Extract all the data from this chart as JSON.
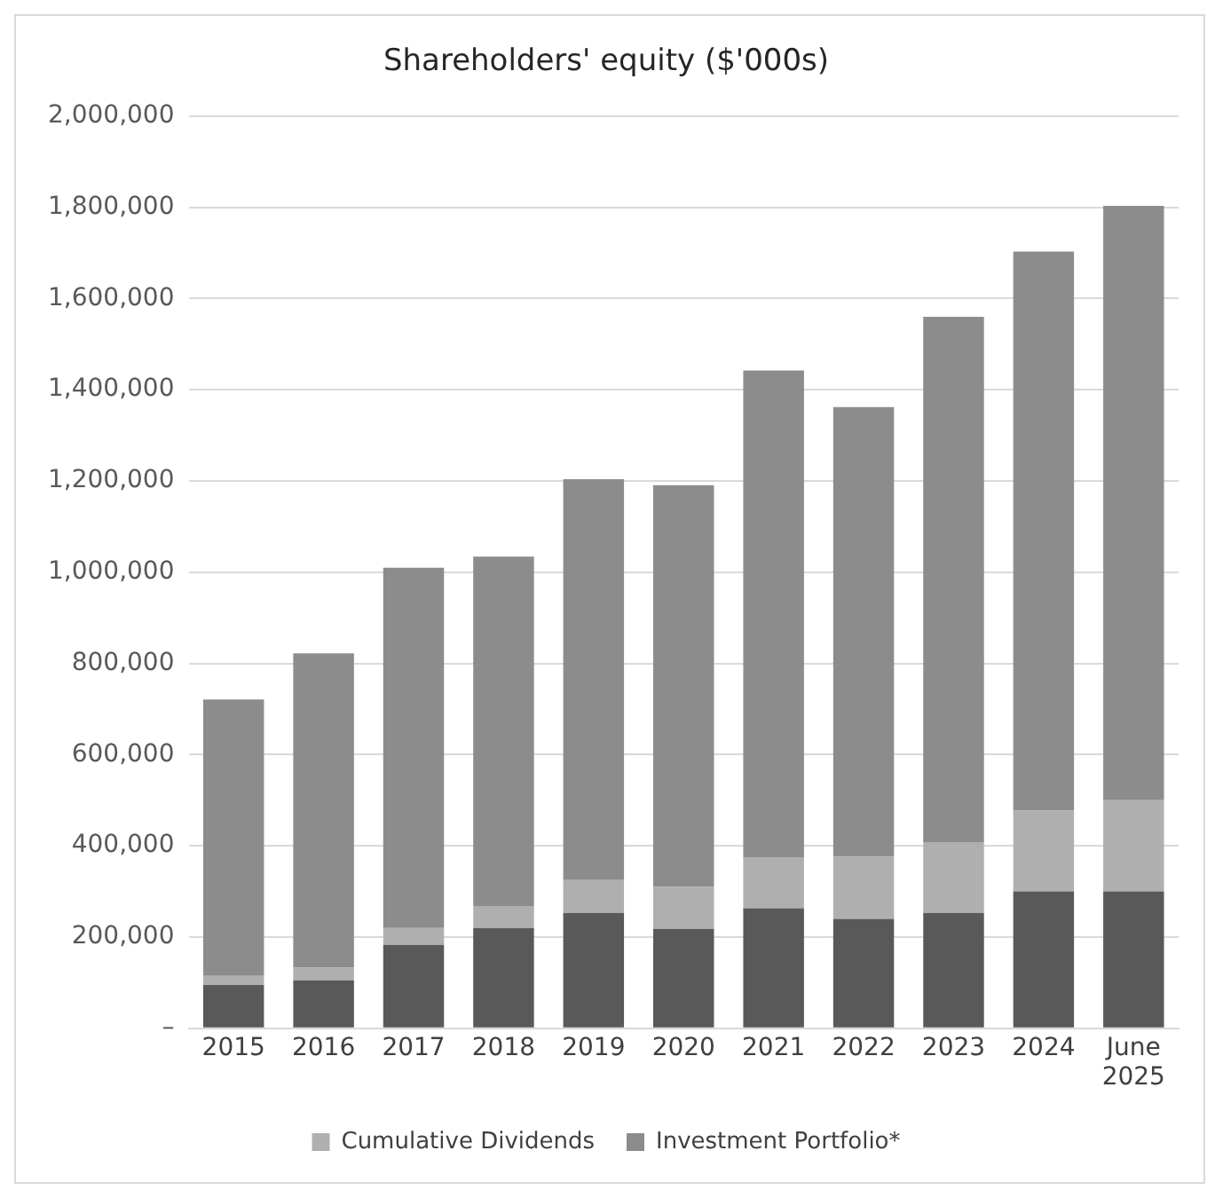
{
  "chart_data": {
    "type": "bar",
    "title": "Shareholders' equity ($'000s)",
    "stacked": true,
    "categories": [
      "2015",
      "2016",
      "2017",
      "2018",
      "2019",
      "2020",
      "2021",
      "2022",
      "2023",
      "2024",
      "June 2025"
    ],
    "series": [
      {
        "color": "#595959",
        "values": [
          95000,
          105000,
          183000,
          220000,
          253000,
          218000,
          263000,
          240000,
          253000,
          300000,
          300000
        ]
      },
      {
        "name": "Cumulative Dividends",
        "color": "#afafaf",
        "values": [
          20000,
          28000,
          37000,
          48000,
          72000,
          92000,
          112000,
          136000,
          155000,
          177000,
          200000
        ]
      },
      {
        "name": "Investment Portfolio*",
        "color": "#8c8c8c",
        "values": [
          606000,
          689000,
          790000,
          766000,
          879000,
          881000,
          1067000,
          986000,
          1152000,
          1226000,
          1303000
        ]
      }
    ],
    "ylim": [
      0,
      2000000
    ],
    "yticks": [
      {
        "value": 0,
        "label": "–"
      },
      {
        "value": 200000,
        "label": "200,000"
      },
      {
        "value": 400000,
        "label": "400,000"
      },
      {
        "value": 600000,
        "label": "600,000"
      },
      {
        "value": 800000,
        "label": "800,000"
      },
      {
        "value": 1000000,
        "label": "1,000,000"
      },
      {
        "value": 1200000,
        "label": "1,200,000"
      },
      {
        "value": 1400000,
        "label": "1,400,000"
      },
      {
        "value": 1600000,
        "label": "1,600,000"
      },
      {
        "value": 1800000,
        "label": "1,800,000"
      },
      {
        "value": 2000000,
        "label": "2,000,000"
      }
    ],
    "grid": "y",
    "legend": "bottom"
  }
}
